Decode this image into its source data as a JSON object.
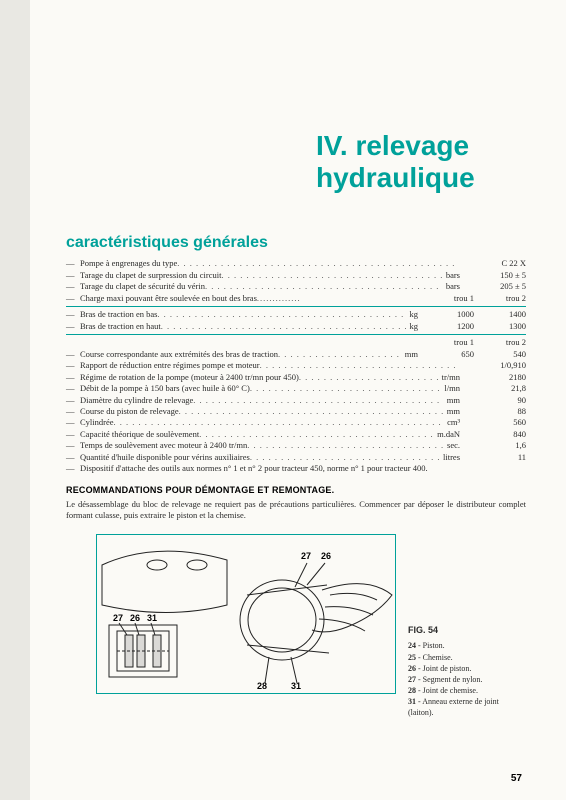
{
  "title_line1": "IV. relevage",
  "title_line2": "hydraulique",
  "section": "caractéristiques générales",
  "specs_single": [
    {
      "label": "Pompe à engrenages du type",
      "unit": "",
      "val": "C 22 X"
    },
    {
      "label": "Tarage du clapet de surpression du circuit",
      "unit": "bars",
      "val": "150 ± 5"
    },
    {
      "label": "Tarage du clapet de sécurité du vérin",
      "unit": "bars",
      "val": "205 ± 5"
    }
  ],
  "specs_two_hdr1": {
    "label": "Charge maxi pouvant être soulevée en bout des bras",
    "c1": "trou 1",
    "c2": "trou 2"
  },
  "specs_two_a": [
    {
      "label": "Bras de traction en bas",
      "unit": "kg",
      "c1": "1000",
      "c2": "1400"
    },
    {
      "label": "Bras de traction en haut",
      "unit": "kg",
      "c1": "1200",
      "c2": "1300"
    }
  ],
  "specs_two_hdr2": {
    "c1": "trou 1",
    "c2": "trou 2"
  },
  "specs_two_b": [
    {
      "label": "Course correspondante aux extrémités des bras de traction",
      "unit": "mm",
      "c1": "650",
      "c2": "540"
    }
  ],
  "specs_single_b": [
    {
      "label": "Rapport de réduction entre régimes pompe et moteur",
      "unit": "",
      "val": "1/0,910"
    },
    {
      "label": "Régime de rotation de la pompe (moteur à 2400 tr/mn pour 450)",
      "unit": "tr/mn",
      "val": "2180"
    },
    {
      "label": "Débit de la pompe à 150 bars (avec huile à 60° C)",
      "unit": "l/mn",
      "val": "21,8"
    },
    {
      "label": "Diamètre du cylindre de relevage",
      "unit": "mm",
      "val": "90"
    },
    {
      "label": "Course du piston de relevage",
      "unit": "mm",
      "val": "88"
    },
    {
      "label": "Cylindrée",
      "unit": "cm³",
      "val": "560"
    },
    {
      "label": "Capacité théorique de soulèvement",
      "unit": "m.daN",
      "val": "840"
    },
    {
      "label": "Temps de soulèvement avec moteur à 2400 tr/mn",
      "unit": "sec.",
      "val": "1,6"
    },
    {
      "label": "Quantité d'huile disponible pour vérins auxiliaires",
      "unit": "litres",
      "val": "11"
    }
  ],
  "specs_note": "Dispositif d'attache des outils aux normes n° 1 et n° 2 pour tracteur 450, norme n° 1 pour tracteur 400.",
  "recomm_head": "RECOMMANDATIONS POUR DÉMONTAGE ET REMONTAGE.",
  "recomm_para": "Le désassemblage du bloc de relevage ne requiert pas de précautions particulières. Commencer par déposer le distributeur complet formant culasse, puis extraire le piston et la chemise.",
  "fig_label": "FIG. 54",
  "fig_legend": [
    {
      "n": "24",
      "t": "Piston."
    },
    {
      "n": "25",
      "t": "Chemise."
    },
    {
      "n": "26",
      "t": "Joint de piston."
    },
    {
      "n": "27",
      "t": "Segment de nylon."
    },
    {
      "n": "28",
      "t": "Joint de chemise."
    },
    {
      "n": "31",
      "t": "Anneau externe de joint (laiton)."
    }
  ],
  "callouts_top": [
    "27",
    "26"
  ],
  "callouts_left": [
    "27",
    "26",
    "31"
  ],
  "callouts_bottom": [
    "28",
    "31"
  ],
  "page_number": "57",
  "colors": {
    "accent": "#00a19a",
    "text": "#2a2a2a",
    "paper": "#fbfaf6"
  }
}
